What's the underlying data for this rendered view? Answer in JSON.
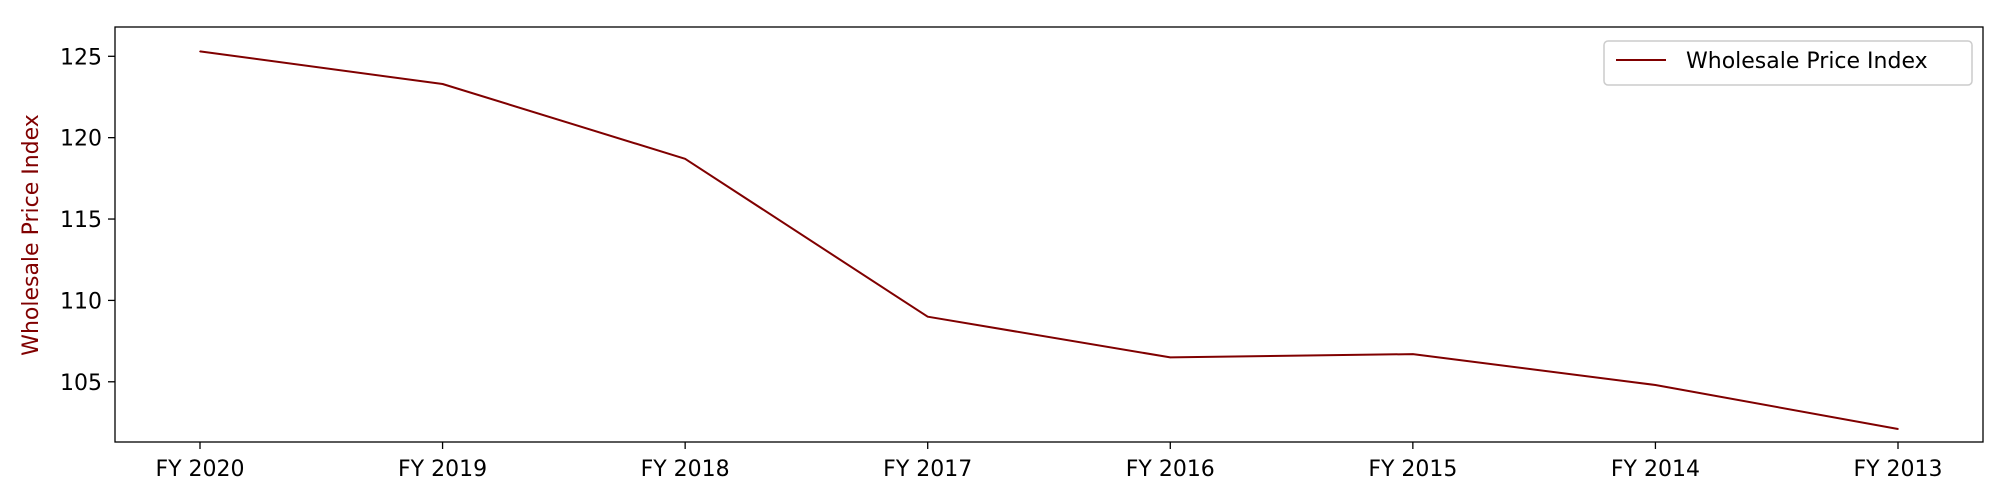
{
  "chart_data": {
    "type": "line",
    "title": "",
    "xlabel": "",
    "ylabel": "Wholesale Price Index",
    "categories": [
      "FY 2020",
      "FY 2019",
      "FY 2018",
      "FY 2017",
      "FY 2016",
      "FY 2015",
      "FY 2014",
      "FY 2013"
    ],
    "series": [
      {
        "name": "Wholesale Price Index",
        "values": [
          125.3,
          123.3,
          118.7,
          109.0,
          106.5,
          106.7,
          104.8,
          102.1
        ],
        "color": "#800000"
      }
    ],
    "ylim": [
      101.3,
      126.8
    ],
    "yticks": [
      105,
      110,
      115,
      120,
      125
    ],
    "grid": false,
    "legend_position": "top-right",
    "colors": {
      "line": "#800000",
      "ylabel": "#800000",
      "axes": "#000000"
    }
  }
}
